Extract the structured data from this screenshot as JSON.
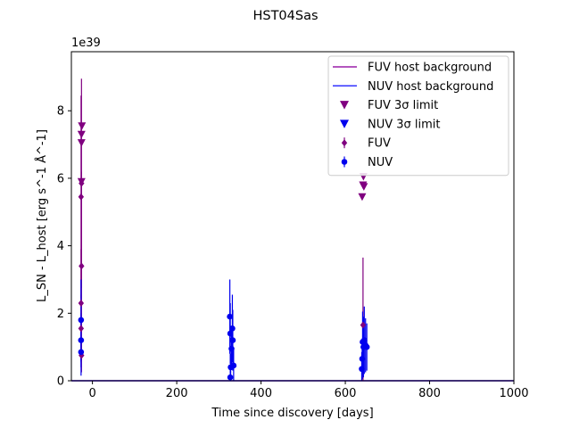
{
  "chart_data": {
    "type": "scatter",
    "title": "HST04Sas",
    "xlabel": "Time since discovery [days]",
    "ylabel": "L_SN - L_host [erg s^-1 Å^-1]",
    "y_offset_text": "1e39",
    "xlim": [
      -50,
      1000
    ],
    "ylim": [
      0,
      9.75
    ],
    "xticks": [
      0,
      200,
      400,
      600,
      800,
      1000
    ],
    "yticks": [
      0,
      2,
      4,
      6,
      8
    ],
    "grid": false,
    "legend_position": "top-right",
    "colors": {
      "fuv": "#800080",
      "fuv_line": "#9a1fa8",
      "nuv": "#0000ee",
      "nuv_line": "#3333ff"
    },
    "legend": [
      {
        "label": "FUV host background",
        "kind": "line",
        "color": "#9a1fa8"
      },
      {
        "label": "NUV host background",
        "kind": "line",
        "color": "#3333ff"
      },
      {
        "label": "FUV 3σ limit",
        "kind": "triangle",
        "color": "#800080"
      },
      {
        "label": "NUV 3σ limit",
        "kind": "triangle",
        "color": "#0000ee"
      },
      {
        "label": "FUV",
        "kind": "diamond",
        "color": "#800080"
      },
      {
        "label": "NUV",
        "kind": "circle",
        "color": "#0000ee"
      }
    ],
    "series": [
      {
        "name": "FUV",
        "marker": "diamond",
        "color": "#800080",
        "points": [
          {
            "x": -26,
            "y": 0.75,
            "err": 0.5
          },
          {
            "x": -27,
            "y": 1.55,
            "err": 1.0
          },
          {
            "x": -27,
            "y": 2.3,
            "err": 1.6
          },
          {
            "x": -26,
            "y": 3.4,
            "err": 2.8
          },
          {
            "x": -27,
            "y": 5.45,
            "err": 3.0
          },
          {
            "x": -26,
            "y": 5.85,
            "err": 3.1
          },
          {
            "x": 642,
            "y": 1.65,
            "err": 2.0
          }
        ]
      },
      {
        "name": "NUV",
        "marker": "circle",
        "color": "#0000ee",
        "points": [
          {
            "x": -27,
            "y": 0.85,
            "err": 0.7
          },
          {
            "x": -27,
            "y": 1.2,
            "err": 0.8
          },
          {
            "x": -27,
            "y": 1.8,
            "err": 1.2
          },
          {
            "x": 327,
            "y": 0.1,
            "err": 0.3
          },
          {
            "x": 328,
            "y": 0.4,
            "err": 0.4
          },
          {
            "x": 330,
            "y": 0.95,
            "err": 0.6
          },
          {
            "x": 327,
            "y": 1.4,
            "err": 0.9
          },
          {
            "x": 326,
            "y": 1.9,
            "err": 1.1
          },
          {
            "x": 332,
            "y": 1.55,
            "err": 1.0
          },
          {
            "x": 333,
            "y": 1.2,
            "err": 0.9
          },
          {
            "x": 335,
            "y": 0.45,
            "err": 0.5
          },
          {
            "x": 639,
            "y": 0.35,
            "err": 0.5
          },
          {
            "x": 640,
            "y": 0.65,
            "err": 0.6
          },
          {
            "x": 641,
            "y": 1.15,
            "err": 0.9
          },
          {
            "x": 643,
            "y": 1.0,
            "err": 0.9
          },
          {
            "x": 645,
            "y": 1.2,
            "err": 1.0
          },
          {
            "x": 648,
            "y": 1.05,
            "err": 0.8
          },
          {
            "x": 651,
            "y": 1.0,
            "err": 0.7
          }
        ]
      },
      {
        "name": "FUV 3σ limit",
        "marker": "triangle",
        "color": "#800080",
        "points": [
          {
            "x": -26,
            "y": 7.05
          },
          {
            "x": -26,
            "y": 7.3
          },
          {
            "x": -25,
            "y": 7.55
          },
          {
            "x": -26,
            "y": 5.9
          },
          {
            "x": 640,
            "y": 5.45
          },
          {
            "x": 642,
            "y": 5.8
          },
          {
            "x": 644,
            "y": 5.75
          },
          {
            "x": 643,
            "y": 6.05
          }
        ]
      },
      {
        "name": "NUV 3σ limit",
        "marker": "triangle",
        "color": "#0000ee",
        "points": []
      },
      {
        "name": "FUV host background",
        "marker": "line",
        "color": "#9a1fa8",
        "baseline": 0.0
      },
      {
        "name": "NUV host background",
        "marker": "line",
        "color": "#3333ff",
        "baseline": 0.0
      }
    ]
  }
}
